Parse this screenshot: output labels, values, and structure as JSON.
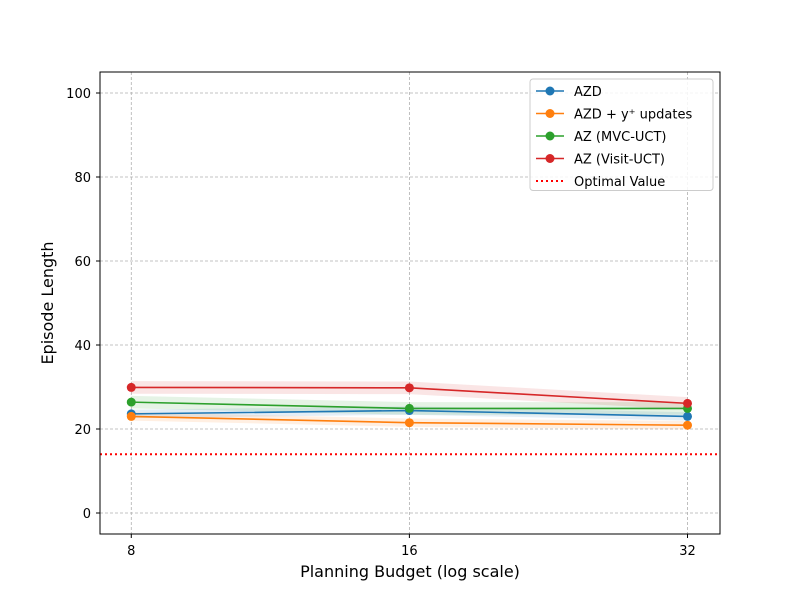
{
  "chart_data": {
    "type": "line",
    "xlabel": "Planning Budget (log scale)",
    "ylabel": "Episode Length",
    "x_scale": "log2",
    "x": [
      8,
      16,
      32
    ],
    "x_tick_labels": [
      "8",
      "16",
      "32"
    ],
    "xlim": [
      7.4,
      34.7
    ],
    "ylim": [
      -5,
      105
    ],
    "y_ticks": [
      0,
      20,
      40,
      60,
      80,
      100
    ],
    "y_tick_labels": [
      "0",
      "20",
      "40",
      "60",
      "80",
      "100"
    ],
    "grid": true,
    "legend_position": "top-right",
    "series": [
      {
        "name": "AZD",
        "color": "#1f77b4",
        "values": [
          23.6,
          24.4,
          23.0
        ],
        "band": 1.0
      },
      {
        "name": "AZD + y⁺ updates",
        "color": "#ff7f0e",
        "values": [
          23.0,
          21.5,
          20.9
        ],
        "band": 1.0
      },
      {
        "name": "AZ (MVC-UCT)",
        "color": "#2ca02c",
        "values": [
          26.4,
          24.9,
          24.9
        ],
        "band": 1.5
      },
      {
        "name": "AZ (Visit-UCT)",
        "color": "#d62728",
        "values": [
          29.9,
          29.8,
          26.1
        ],
        "band": 1.5
      }
    ],
    "reference_lines": [
      {
        "name": "Optimal Value",
        "value": 14.0,
        "color": "#ff0000",
        "style": "dotted"
      }
    ]
  }
}
